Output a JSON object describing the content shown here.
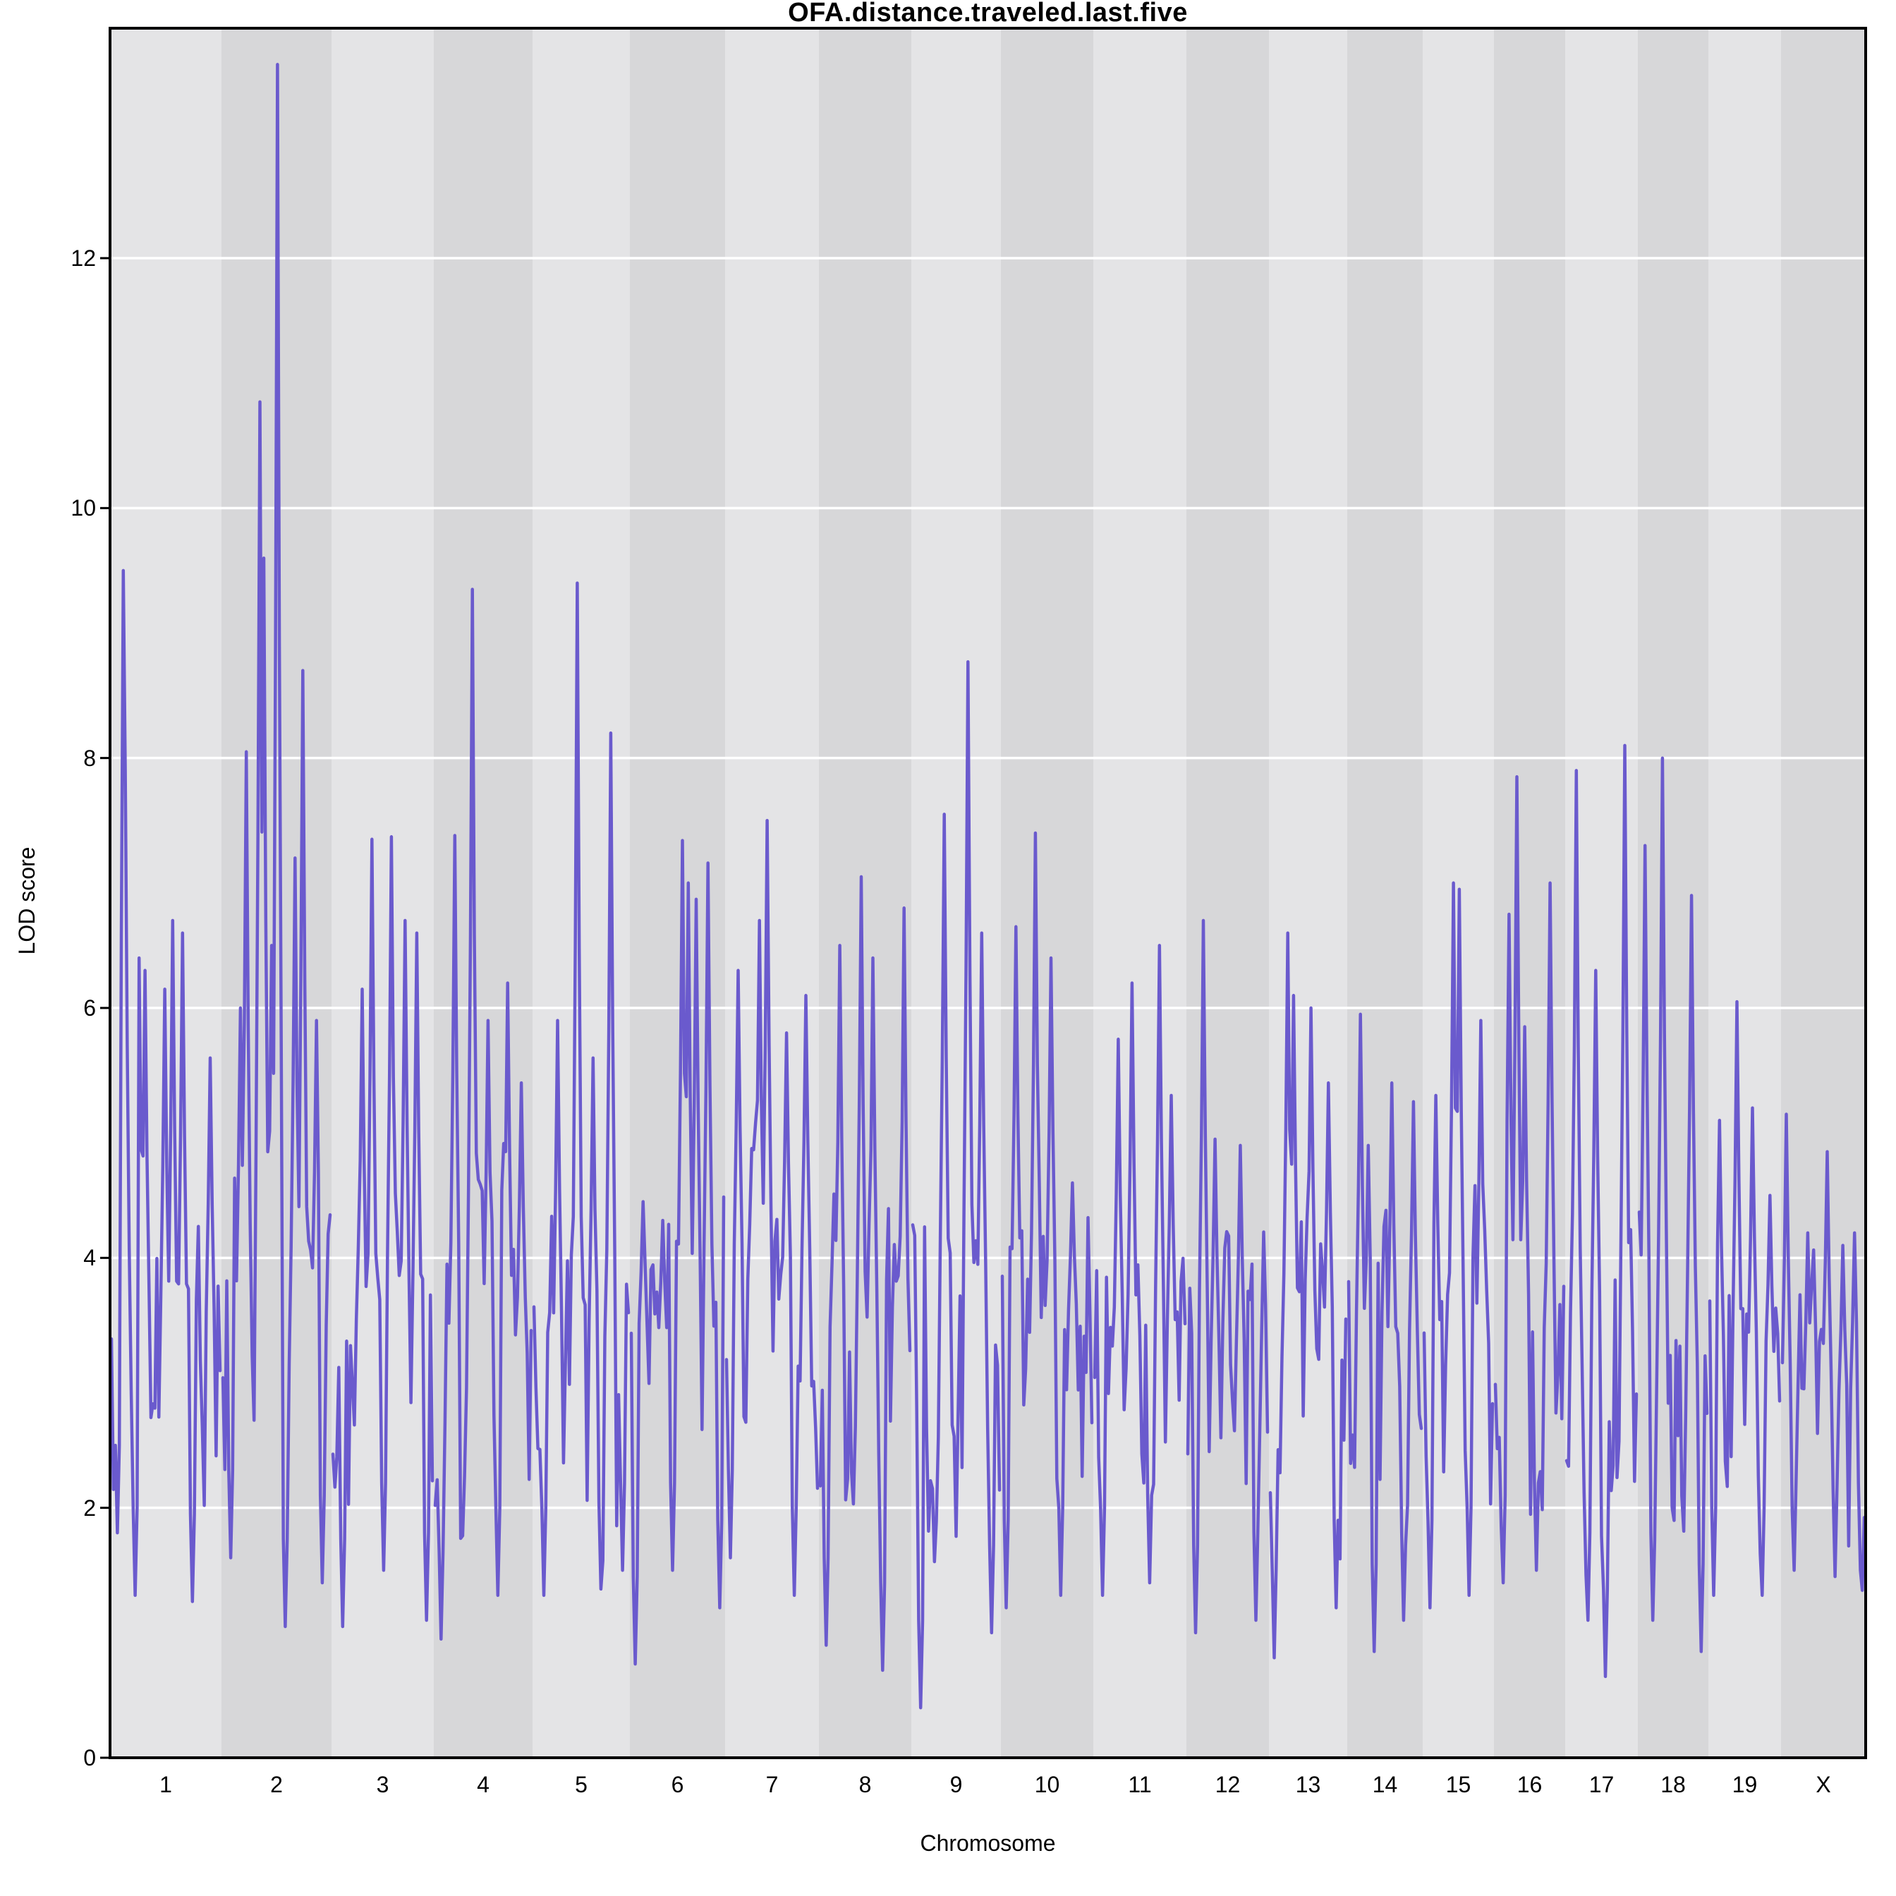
{
  "chart_data": {
    "type": "line",
    "title": "OFA.distance.traveled.last.five",
    "xlabel": "Chromosome",
    "ylabel": "LOD score",
    "ylim": [
      0,
      13.84
    ],
    "yticks": [
      0,
      2,
      4,
      6,
      8,
      10,
      12
    ],
    "grid": "horizontal white lines at even LOD values, drawn under the trace",
    "legend": "none",
    "line_color": "#6a5acd",
    "band_light": "#e4e4e6",
    "band_dark": "#d7d7d9",
    "axis_color": "#000000",
    "gridline_color": "#ffffff",
    "max_lod_genomewide": 13.55,
    "max_lod_chromosome": "2",
    "value_format": "peaks/dips are [fraction along chromosome, LOD score] read from the plot; len is chromosome track width (genetic length proxy)",
    "chromosomes": [
      {
        "name": "1",
        "len": 158,
        "seed": 101,
        "base": 3.0,
        "peaks": [
          [
            0.11,
            9.5
          ],
          [
            0.135,
            7.9
          ],
          [
            0.26,
            6.4
          ],
          [
            0.31,
            6.3
          ],
          [
            0.49,
            6.15
          ],
          [
            0.57,
            6.7
          ],
          [
            0.66,
            6.6
          ],
          [
            0.9,
            5.6
          ]
        ],
        "dips": [
          [
            0.05,
            1.8
          ],
          [
            0.21,
            1.3
          ],
          [
            0.75,
            1.25
          ]
        ]
      },
      {
        "name": "2",
        "len": 156,
        "seed": 202,
        "base": 3.2,
        "peaks": [
          [
            0.17,
            6.0
          ],
          [
            0.22,
            8.05
          ],
          [
            0.35,
            10.85
          ],
          [
            0.39,
            9.6
          ],
          [
            0.45,
            6.5
          ],
          [
            0.5,
            13.55
          ],
          [
            0.68,
            7.2
          ],
          [
            0.74,
            8.7
          ],
          [
            0.87,
            5.9
          ]
        ],
        "dips": [
          [
            0.08,
            1.6
          ],
          [
            0.58,
            1.05
          ],
          [
            0.93,
            1.4
          ]
        ]
      },
      {
        "name": "3",
        "len": 145,
        "seed": 303,
        "base": 3.1,
        "peaks": [
          [
            0.29,
            6.15
          ],
          [
            0.4,
            7.35
          ],
          [
            0.59,
            7.37
          ],
          [
            0.72,
            6.7
          ],
          [
            0.84,
            6.6
          ]
        ],
        "dips": [
          [
            0.1,
            1.05
          ],
          [
            0.5,
            1.5
          ],
          [
            0.95,
            1.1
          ]
        ]
      },
      {
        "name": "4",
        "len": 140,
        "seed": 404,
        "base": 3.2,
        "peaks": [
          [
            0.2,
            7.38
          ],
          [
            0.39,
            9.35
          ],
          [
            0.55,
            5.9
          ],
          [
            0.75,
            6.2
          ],
          [
            0.9,
            5.4
          ]
        ],
        "dips": [
          [
            0.06,
            0.95
          ],
          [
            0.65,
            1.3
          ]
        ]
      },
      {
        "name": "5",
        "len": 138,
        "seed": 505,
        "base": 2.9,
        "peaks": [
          [
            0.25,
            5.9
          ],
          [
            0.45,
            9.4
          ],
          [
            0.62,
            5.6
          ],
          [
            0.81,
            8.2
          ]
        ],
        "dips": [
          [
            0.1,
            1.3
          ],
          [
            0.7,
            1.35
          ],
          [
            0.93,
            1.5
          ]
        ]
      },
      {
        "name": "6",
        "len": 135,
        "seed": 606,
        "base": 3.2,
        "peaks": [
          [
            0.12,
            4.45
          ],
          [
            0.35,
            4.3
          ],
          [
            0.55,
            7.34
          ],
          [
            0.61,
            7.0
          ],
          [
            0.71,
            6.87
          ],
          [
            0.84,
            7.16
          ]
        ],
        "dips": [
          [
            0.05,
            0.75
          ],
          [
            0.45,
            1.5
          ],
          [
            0.95,
            1.2
          ]
        ]
      },
      {
        "name": "7",
        "len": 133,
        "seed": 707,
        "base": 3.5,
        "peaks": [
          [
            0.13,
            6.3
          ],
          [
            0.37,
            6.7
          ],
          [
            0.45,
            7.5
          ],
          [
            0.65,
            5.8
          ],
          [
            0.88,
            6.1
          ]
        ],
        "dips": [
          [
            0.05,
            1.6
          ],
          [
            0.75,
            1.3
          ]
        ]
      },
      {
        "name": "8",
        "len": 131,
        "seed": 808,
        "base": 3.0,
        "peaks": [
          [
            0.22,
            6.5
          ],
          [
            0.45,
            7.05
          ],
          [
            0.58,
            6.4
          ],
          [
            0.93,
            6.8
          ]
        ],
        "dips": [
          [
            0.07,
            0.9
          ],
          [
            0.7,
            0.7
          ]
        ]
      },
      {
        "name": "9",
        "len": 127,
        "seed": 909,
        "base": 3.2,
        "peaks": [
          [
            0.36,
            7.55
          ],
          [
            0.63,
            8.77
          ],
          [
            0.8,
            6.6
          ]
        ],
        "dips": [
          [
            0.08,
            0.4
          ],
          [
            0.9,
            1.0
          ]
        ]
      },
      {
        "name": "10",
        "len": 131,
        "seed": 1010,
        "base": 3.3,
        "peaks": [
          [
            0.16,
            6.65
          ],
          [
            0.37,
            7.4
          ],
          [
            0.54,
            6.4
          ],
          [
            0.78,
            4.6
          ]
        ],
        "dips": [
          [
            0.05,
            1.2
          ],
          [
            0.65,
            1.3
          ]
        ]
      },
      {
        "name": "11",
        "len": 132,
        "seed": 1111,
        "base": 3.0,
        "peaks": [
          [
            0.25,
            5.75
          ],
          [
            0.42,
            6.2
          ],
          [
            0.72,
            6.5
          ],
          [
            0.85,
            5.3
          ]
        ],
        "dips": [
          [
            0.08,
            1.3
          ],
          [
            0.6,
            1.4
          ]
        ]
      },
      {
        "name": "12",
        "len": 117,
        "seed": 1212,
        "base": 2.9,
        "peaks": [
          [
            0.2,
            6.7
          ],
          [
            0.35,
            4.95
          ],
          [
            0.65,
            4.9
          ]
        ],
        "dips": [
          [
            0.1,
            1.0
          ],
          [
            0.85,
            1.1
          ]
        ]
      },
      {
        "name": "13",
        "len": 111,
        "seed": 1313,
        "base": 3.1,
        "peaks": [
          [
            0.22,
            6.6
          ],
          [
            0.31,
            6.1
          ],
          [
            0.55,
            6.0
          ],
          [
            0.76,
            5.4
          ]
        ],
        "dips": [
          [
            0.05,
            0.8
          ],
          [
            0.88,
            1.2
          ]
        ]
      },
      {
        "name": "14",
        "len": 107,
        "seed": 1414,
        "base": 2.9,
        "peaks": [
          [
            0.17,
            5.95
          ],
          [
            0.26,
            4.9
          ],
          [
            0.59,
            5.4
          ],
          [
            0.9,
            5.25
          ]
        ],
        "dips": [
          [
            0.35,
            0.85
          ],
          [
            0.75,
            1.1
          ]
        ]
      },
      {
        "name": "15",
        "len": 101,
        "seed": 1515,
        "base": 3.0,
        "peaks": [
          [
            0.18,
            5.3
          ],
          [
            0.43,
            7.0
          ],
          [
            0.5,
            6.95
          ],
          [
            0.82,
            5.9
          ]
        ],
        "dips": [
          [
            0.08,
            1.2
          ],
          [
            0.65,
            1.3
          ]
        ]
      },
      {
        "name": "16",
        "len": 101,
        "seed": 1616,
        "base": 3.1,
        "peaks": [
          [
            0.2,
            6.75
          ],
          [
            0.3,
            7.85
          ],
          [
            0.44,
            5.85
          ],
          [
            0.81,
            7.0
          ]
        ],
        "dips": [
          [
            0.1,
            1.4
          ],
          [
            0.6,
            1.5
          ]
        ]
      },
      {
        "name": "17",
        "len": 103,
        "seed": 1717,
        "base": 3.0,
        "peaks": [
          [
            0.13,
            7.9
          ],
          [
            0.42,
            6.3
          ],
          [
            0.83,
            8.1
          ]
        ],
        "dips": [
          [
            0.3,
            1.1
          ],
          [
            0.55,
            0.65
          ]
        ]
      },
      {
        "name": "18",
        "len": 100,
        "seed": 1818,
        "base": 3.1,
        "peaks": [
          [
            0.08,
            7.3
          ],
          [
            0.35,
            8.0
          ],
          [
            0.78,
            6.9
          ]
        ],
        "dips": [
          [
            0.2,
            1.1
          ],
          [
            0.9,
            0.85
          ]
        ]
      },
      {
        "name": "19",
        "len": 103,
        "seed": 1919,
        "base": 2.9,
        "peaks": [
          [
            0.15,
            5.1
          ],
          [
            0.38,
            6.05
          ],
          [
            0.6,
            5.2
          ],
          [
            0.85,
            4.5
          ]
        ],
        "dips": [
          [
            0.05,
            1.3
          ],
          [
            0.75,
            1.3
          ]
        ]
      },
      {
        "name": "X",
        "len": 120,
        "seed": 2020,
        "base": 2.6,
        "peaks": [
          [
            0.05,
            5.15
          ],
          [
            0.3,
            4.2
          ],
          [
            0.55,
            4.85
          ],
          [
            0.73,
            4.1
          ],
          [
            0.87,
            4.2
          ]
        ],
        "dips": [
          [
            0.15,
            1.5
          ],
          [
            0.65,
            1.45
          ],
          [
            0.95,
            1.5
          ]
        ]
      }
    ]
  }
}
